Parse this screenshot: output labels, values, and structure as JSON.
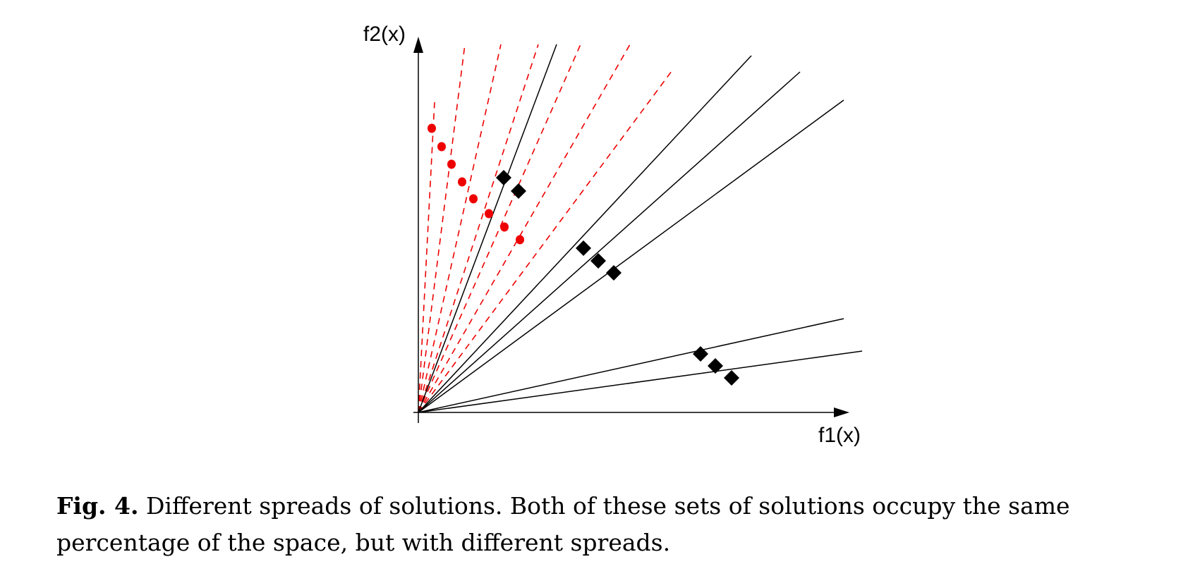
{
  "axes": {
    "x_label": "f1(x)",
    "y_label": "f2(x)"
  },
  "colors": {
    "red": "#ee0000",
    "black": "#000000"
  },
  "caption": {
    "label": "Fig. 4.",
    "line1": "Different spreads of solutions. Both of these sets of solutions occupy the same",
    "line2": "percentage of the space, but with different spreads."
  },
  "chart_data": {
    "type": "scatter",
    "x_label": "f1(x)",
    "y_label": "f2(x)",
    "series": [
      {
        "marker": "circle",
        "color": "#ee0000",
        "line_style": "dashed",
        "rays": [
          [
            23,
            440
          ],
          [
            66,
            522
          ],
          [
            117,
            522
          ],
          [
            170,
            522
          ],
          [
            230,
            522
          ],
          [
            300,
            522
          ],
          [
            362,
            488
          ]
        ],
        "points": [
          [
            19,
            403
          ],
          [
            33,
            377
          ],
          [
            47,
            352
          ],
          [
            62,
            327
          ],
          [
            78,
            303
          ],
          [
            100,
            282
          ],
          [
            122,
            263
          ],
          [
            144,
            245
          ]
        ]
      },
      {
        "marker": "diamond",
        "color": "#000000",
        "line_style": "solid",
        "rays": [
          [
            196,
            522
          ],
          [
            472,
            506
          ],
          [
            541,
            483
          ],
          [
            603,
            443
          ],
          [
            603,
            133
          ],
          [
            629,
            87
          ]
        ],
        "points": [
          [
            121,
            333
          ],
          [
            142,
            314
          ],
          [
            234,
            233
          ],
          [
            255,
            215
          ],
          [
            277,
            198
          ],
          [
            400,
            83
          ],
          [
            421,
            66
          ],
          [
            444,
            49
          ]
        ]
      }
    ]
  }
}
